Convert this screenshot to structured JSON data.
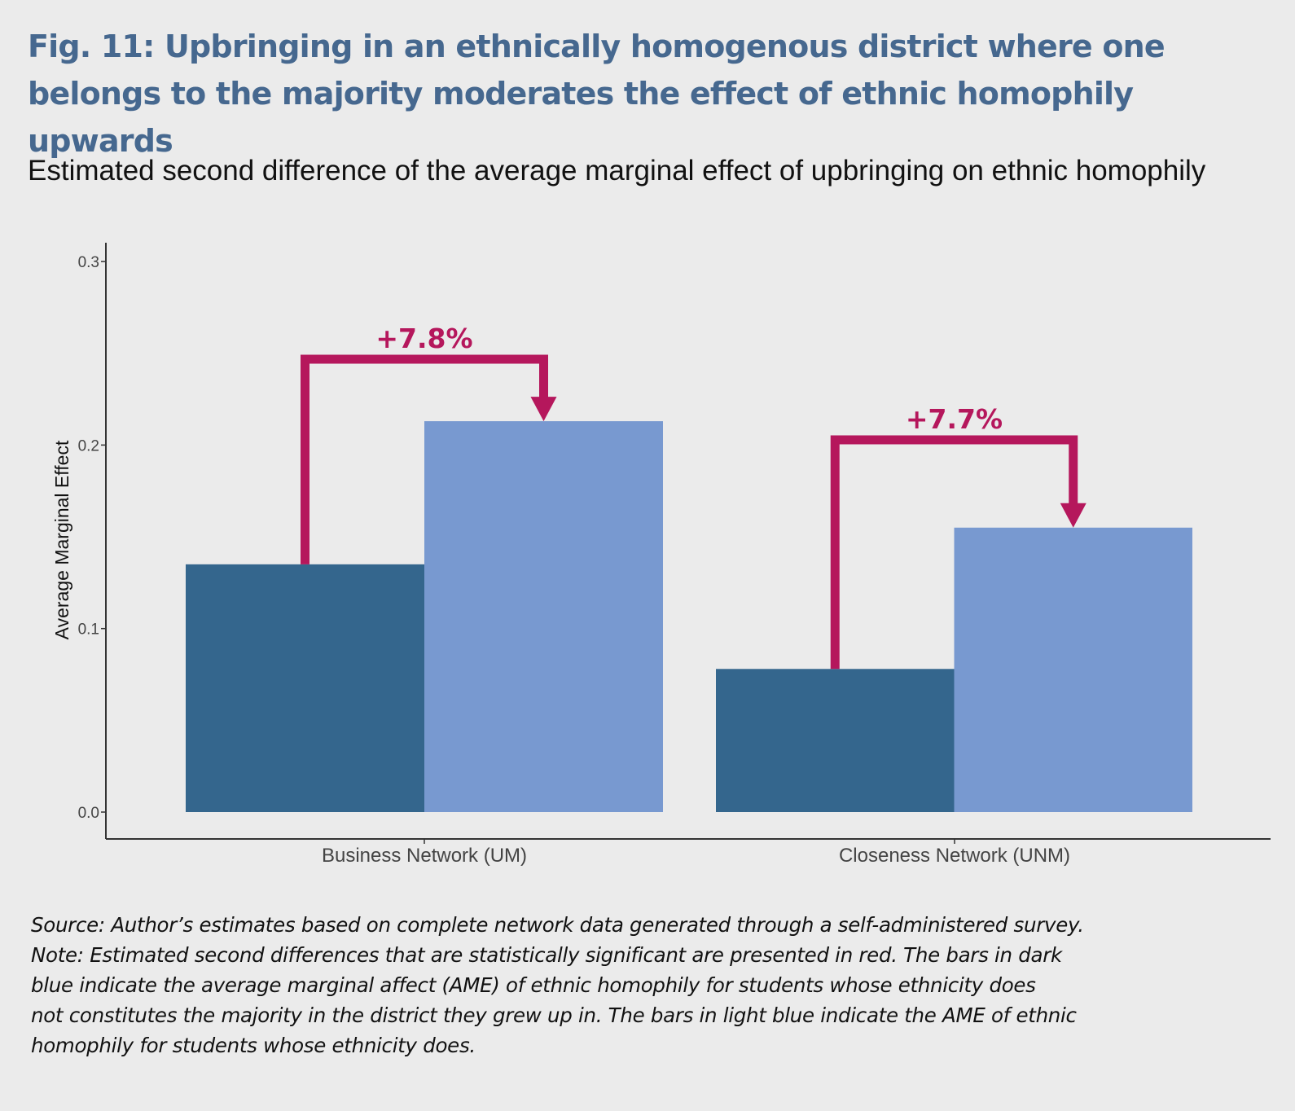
{
  "header": {
    "title": "Fig. 11: Upbringing in an ethnically homogenous district where one belongs to the majority moderates the effect of ethnic homophily upwards",
    "subtitle": "Estimated second difference of the average marginal effect of upbringing on ethnic homophily"
  },
  "chart_data": {
    "type": "bar",
    "ylabel": "Average Marginal Effect",
    "xlabel": "",
    "ylim": [
      0,
      0.3
    ],
    "yticks": [
      "0.0",
      "0.1",
      "0.2",
      "0.3"
    ],
    "grid": false,
    "legend": "none",
    "categories": [
      "Business Network (UM)",
      "Closeness Network (UNM)"
    ],
    "series": [
      {
        "values": [
          0.135,
          0.078
        ],
        "color": "#34668d"
      },
      {
        "values": [
          0.213,
          0.155
        ],
        "color": "#7899d0"
      }
    ],
    "annotations": [
      {
        "category": "Business Network (UM)",
        "label": "+7.8%"
      },
      {
        "category": "Closeness Network (UNM)",
        "label": "+7.7%"
      }
    ],
    "annotation_color": "#b5175c"
  },
  "notes": {
    "lines": [
      "Source: Author’s estimates based on complete network data generated through a self-administered survey.",
      "Note: Estimated second differences that are statistically significant are presented in red. The bars in dark",
      "blue indicate the average marginal affect (AME) of ethnic homophily for students whose ethnicity does",
      "not constitutes the majority in the district they grew up in. The bars in light blue indicate the AME of ethnic",
      "homophily for students whose ethnicity does."
    ]
  }
}
